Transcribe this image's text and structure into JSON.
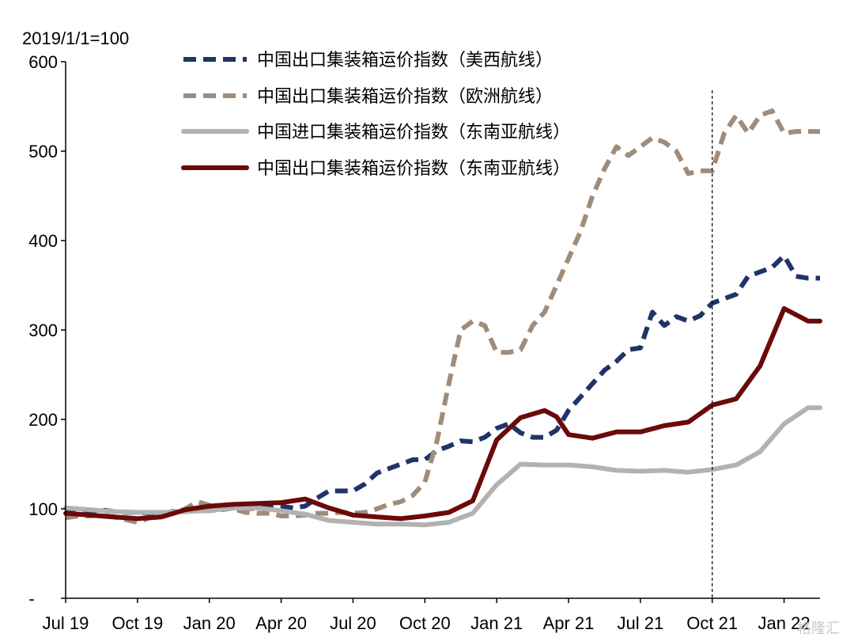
{
  "chart_data": {
    "type": "line",
    "unit_label": "2019/1/1=100",
    "x_ticks": [
      "Jul 19",
      "Oct 19",
      "Jan 20",
      "Apr 20",
      "Jul 20",
      "Oct 20",
      "Jan 21",
      "Apr 21",
      "Jul 21",
      "Oct 21",
      "Jan 22"
    ],
    "y_ticks": [
      "-",
      "100",
      "200",
      "300",
      "400",
      "500",
      "600"
    ],
    "ylim": [
      0,
      600
    ],
    "grid": false,
    "legend_position": "top-left",
    "vline_at": "Oct 21",
    "x_unit": "month index from Jul 19",
    "series": [
      {
        "name": "中国出口集装箱运价指数（美西航线）",
        "color": "#1f3468",
        "dash": "dashed",
        "x": [
          0,
          0.5,
          1,
          1.5,
          2,
          2.5,
          3,
          3.5,
          4,
          4.5,
          5,
          5.5,
          6,
          6.5,
          7,
          7.5,
          8,
          8.5,
          9,
          9.5,
          10,
          10.5,
          11,
          11.5,
          12,
          12.5,
          13,
          13.5,
          14,
          14.5,
          15,
          15.5,
          16,
          16.5,
          17,
          17.5,
          18,
          18.5,
          19,
          19.5,
          20,
          20.5,
          21,
          21.5,
          22,
          22.5,
          23,
          23.5,
          24,
          24.5,
          25,
          25.5,
          26,
          26.5,
          27,
          27.5,
          28,
          28.5,
          29,
          29.5,
          30,
          30.5,
          31,
          31.5
        ],
        "values": [
          95,
          101,
          97,
          99,
          97,
          96,
          96,
          95,
          95,
          97,
          97,
          98,
          98,
          99,
          101,
          101,
          100,
          103,
          103,
          101,
          103,
          112,
          120,
          120,
          120,
          128,
          140,
          145,
          150,
          155,
          155,
          165,
          170,
          176,
          175,
          180,
          190,
          195,
          185,
          180,
          180,
          188,
          210,
          225,
          240,
          255,
          265,
          278,
          280,
          320,
          305,
          315,
          310,
          316,
          330,
          335,
          340,
          360,
          365,
          370,
          383,
          360,
          358,
          358
        ]
      },
      {
        "name": "中国出口集装箱运价指数（欧洲航线）",
        "color": "#a08c7a",
        "dash": "dashed",
        "x": [
          0,
          0.5,
          1,
          1.5,
          2,
          2.5,
          3,
          3.5,
          4,
          4.5,
          5,
          5.5,
          6,
          6.5,
          7,
          7.5,
          8,
          8.5,
          9,
          9.5,
          10,
          10.5,
          11,
          11.5,
          12,
          12.5,
          13,
          13.5,
          14,
          14.5,
          15,
          15.5,
          16,
          16.5,
          17,
          17.5,
          18,
          18.5,
          19,
          19.5,
          20,
          20.5,
          21,
          21.5,
          22,
          22.5,
          23,
          23.5,
          24,
          24.5,
          25,
          25.5,
          26,
          26.5,
          27,
          27.5,
          28,
          28.5,
          29,
          29.5,
          30,
          30.5,
          31,
          31.5
        ],
        "values": [
          90,
          92,
          92,
          93,
          91,
          88,
          85,
          90,
          91,
          95,
          100,
          108,
          104,
          104,
          100,
          96,
          95,
          95,
          92,
          92,
          93,
          95,
          95,
          96,
          95,
          96,
          100,
          105,
          108,
          115,
          130,
          175,
          240,
          300,
          310,
          305,
          275,
          275,
          278,
          305,
          320,
          350,
          380,
          410,
          450,
          480,
          505,
          495,
          505,
          515,
          510,
          500,
          475,
          478,
          478,
          520,
          540,
          520,
          540,
          545,
          520,
          522,
          522,
          522
        ]
      },
      {
        "name": "中国进口集装箱运价指数（东南亚航线）",
        "color": "#b2b2b2",
        "dash": "solid",
        "x": [
          0,
          1,
          2,
          3,
          4,
          5,
          6,
          7,
          8,
          9,
          10,
          11,
          12,
          13,
          14,
          15,
          16,
          17,
          18,
          19,
          20,
          21,
          22,
          23,
          24,
          25,
          26,
          27,
          28,
          29,
          30,
          31,
          31.5
        ],
        "values": [
          101,
          99,
          97,
          96,
          96,
          97,
          98,
          101,
          101,
          98,
          94,
          87,
          85,
          83,
          83,
          82,
          85,
          95,
          127,
          150,
          149,
          149,
          147,
          143,
          142,
          143,
          141,
          144,
          149,
          164,
          195,
          213,
          213
        ]
      },
      {
        "name": "中国出口集装箱运价指数（东南亚航线）",
        "color": "#6b0a0a",
        "dash": "solid",
        "x": [
          0,
          1,
          2,
          3,
          4,
          5,
          6,
          7,
          8,
          9,
          10,
          11,
          12,
          13,
          14,
          15,
          16,
          17,
          18,
          19,
          20,
          20.5,
          21,
          22,
          23,
          24,
          25,
          26,
          27,
          28,
          29,
          30,
          31,
          31.5
        ],
        "values": [
          95,
          93,
          91,
          89,
          91,
          99,
          103,
          105,
          106,
          107,
          111,
          101,
          93,
          91,
          89,
          92,
          96,
          109,
          177,
          202,
          210,
          203,
          183,
          179,
          186,
          186,
          193,
          197,
          216,
          223,
          260,
          324,
          310,
          310
        ]
      }
    ]
  },
  "watermark_text": "格隆汇"
}
